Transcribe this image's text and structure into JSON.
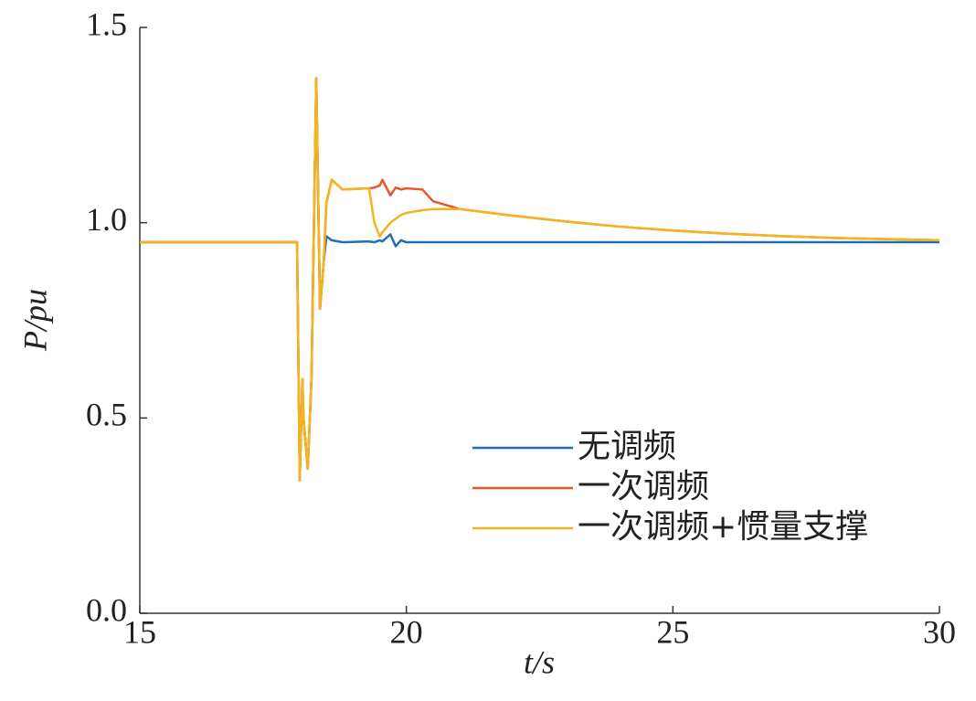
{
  "chart_data": {
    "type": "line",
    "x_label": "t/s",
    "y_label": "P/pu",
    "x": [
      15,
      17.95,
      18.0,
      18.05,
      18.07,
      18.15,
      18.22,
      18.31,
      18.38,
      18.45,
      18.5,
      18.6,
      18.8,
      19.3,
      19.4,
      19.5,
      19.55,
      19.7,
      19.8,
      19.9,
      20.0,
      20.3,
      20.5,
      21,
      22,
      23,
      24,
      25,
      26,
      27,
      28,
      29,
      30
    ],
    "series": [
      {
        "name": "无调频",
        "color": "#1f6fb0",
        "values": [
          0.95,
          0.95,
          0.34,
          0.6,
          0.5,
          0.37,
          0.6,
          1.37,
          0.78,
          0.9,
          0.965,
          0.955,
          0.95,
          0.952,
          0.95,
          0.955,
          0.952,
          0.97,
          0.94,
          0.955,
          0.95,
          0.95,
          0.95,
          0.95,
          0.95,
          0.95,
          0.95,
          0.95,
          0.95,
          0.95,
          0.95,
          0.95,
          0.95
        ]
      },
      {
        "name": "一次调频",
        "color": "#e8562a",
        "values": [
          0.95,
          0.95,
          0.34,
          0.6,
          0.5,
          0.37,
          0.6,
          1.37,
          0.78,
          0.9,
          1.05,
          1.11,
          1.085,
          1.088,
          1.09,
          1.095,
          1.11,
          1.07,
          1.09,
          1.085,
          1.088,
          1.085,
          1.055,
          1.035,
          1.018,
          1.003,
          0.99,
          0.98,
          0.972,
          0.966,
          0.961,
          0.958,
          0.955
        ]
      },
      {
        "name": "一次调频+惯量支撑",
        "color": "#f5b31c",
        "values": [
          0.95,
          0.95,
          0.34,
          0.6,
          0.5,
          0.37,
          0.6,
          1.37,
          0.78,
          0.9,
          1.05,
          1.11,
          1.085,
          1.088,
          1.0,
          0.965,
          0.975,
          1.0,
          1.01,
          1.02,
          1.025,
          1.032,
          1.035,
          1.035,
          1.018,
          1.003,
          0.99,
          0.98,
          0.972,
          0.966,
          0.961,
          0.958,
          0.955
        ]
      }
    ],
    "xlim": [
      15,
      30
    ],
    "xticks": [
      15,
      20,
      25,
      30
    ],
    "ylim": [
      0,
      1.5
    ],
    "yticks": [
      {
        "value": 0,
        "label": "0.0"
      },
      0.5,
      {
        "value": 1,
        "label": "1.0"
      },
      1.5
    ],
    "legend": "lower right"
  }
}
